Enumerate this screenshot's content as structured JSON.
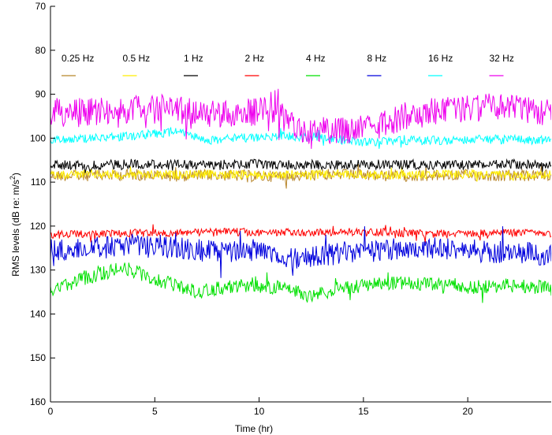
{
  "chart_data": {
    "type": "line",
    "title": "",
    "xlabel": "Time (hr)",
    "ylabel_main": "RMS levels (dB re: m/s",
    "ylabel_sup": "2",
    "ylabel_tail": ")",
    "xlim": [
      0,
      24
    ],
    "ylim": [
      70,
      160
    ],
    "y_reversed": true,
    "grid": false,
    "legend_placement": "top, single row inside axes",
    "xticks": [
      0,
      5,
      10,
      15,
      20
    ],
    "yticks": [
      70,
      80,
      90,
      100,
      110,
      120,
      130,
      140,
      150,
      160
    ],
    "series": [
      {
        "name": "0.25 Hz",
        "color": "#b8862b",
        "base": 108.5,
        "noise": 1.3,
        "zorder": 1,
        "x": [
          0,
          2,
          4,
          6,
          8,
          10,
          12,
          14,
          16,
          18,
          20,
          22,
          24
        ],
        "y": [
          108.5,
          108.5,
          108.3,
          108.6,
          108.4,
          108.7,
          108.5,
          108.3,
          108.6,
          108.5,
          108.4,
          108.6,
          108.5
        ]
      },
      {
        "name": "0.5 Hz",
        "color": "#ffee00",
        "base": 108.3,
        "noise": 1.0,
        "zorder": 2,
        "x": [
          0,
          2,
          4,
          6,
          8,
          10,
          12,
          14,
          16,
          18,
          20,
          22,
          24
        ],
        "y": [
          108.3,
          108.2,
          108.4,
          108.3,
          108.2,
          108.4,
          108.3,
          108.2,
          108.4,
          108.3,
          108.2,
          108.3,
          108.3
        ]
      },
      {
        "name": "1 Hz",
        "color": "#000000",
        "base": 106.0,
        "noise": 1.1,
        "zorder": 3,
        "x": [
          0,
          2,
          4,
          6,
          8,
          10,
          12,
          14,
          16,
          18,
          20,
          22,
          24
        ],
        "y": [
          106.0,
          106.2,
          105.8,
          106.1,
          106.0,
          105.9,
          106.1,
          106.0,
          105.9,
          106.0,
          106.1,
          105.9,
          106.0
        ]
      },
      {
        "name": "2 Hz",
        "color": "#ff0000",
        "base": 121.5,
        "noise": 0.9,
        "zorder": 5,
        "x": [
          0,
          2,
          4,
          6,
          8,
          10,
          12,
          14,
          16,
          18,
          20,
          22,
          24
        ],
        "y": [
          122.0,
          121.8,
          121.6,
          121.5,
          121.3,
          121.4,
          121.5,
          121.3,
          121.4,
          121.8,
          121.7,
          121.5,
          121.6
        ]
      },
      {
        "name": "4 Hz",
        "color": "#00e000",
        "base": 133.0,
        "noise": 1.6,
        "zorder": 4,
        "x": [
          0,
          1.5,
          3.5,
          5,
          7,
          9,
          11,
          12.5,
          14,
          16,
          18,
          20,
          22,
          24
        ],
        "y": [
          135.0,
          132.0,
          129.5,
          132.0,
          135.0,
          133.5,
          134.0,
          136.0,
          134.0,
          133.0,
          133.0,
          134.0,
          133.5,
          134.0
        ]
      },
      {
        "name": "8 Hz",
        "color": "#0000dd",
        "base": 125.5,
        "noise": 2.6,
        "zorder": 6,
        "x": [
          0,
          2,
          4,
          6,
          8,
          10,
          12,
          14,
          16,
          18,
          20,
          22,
          24
        ],
        "y": [
          125.5,
          125.0,
          124.5,
          125.0,
          125.8,
          125.5,
          127.5,
          126.0,
          125.5,
          125.0,
          125.5,
          126.0,
          126.5
        ]
      },
      {
        "name": "16 Hz",
        "color": "#00ffff",
        "base": 100.0,
        "noise": 1.0,
        "zorder": 7,
        "x": [
          0,
          2,
          4,
          6,
          7.5,
          9,
          11,
          13,
          15,
          17,
          19,
          21,
          24
        ],
        "y": [
          100.5,
          100.0,
          99.5,
          98.5,
          100.5,
          100.0,
          99.5,
          99.8,
          101.0,
          100.5,
          100.5,
          100.2,
          100.5
        ]
      },
      {
        "name": "32 Hz",
        "color": "#ee00ee",
        "base": 94.0,
        "noise": 3.2,
        "zorder": 8,
        "x": [
          0,
          2,
          4,
          6,
          8,
          10,
          11,
          12,
          14,
          15,
          17,
          19,
          21,
          24
        ],
        "y": [
          94.0,
          94.0,
          93.5,
          93.5,
          94.5,
          94.0,
          93.0,
          98.0,
          98.5,
          98.0,
          95.0,
          93.5,
          93.0,
          94.0
        ]
      }
    ]
  }
}
